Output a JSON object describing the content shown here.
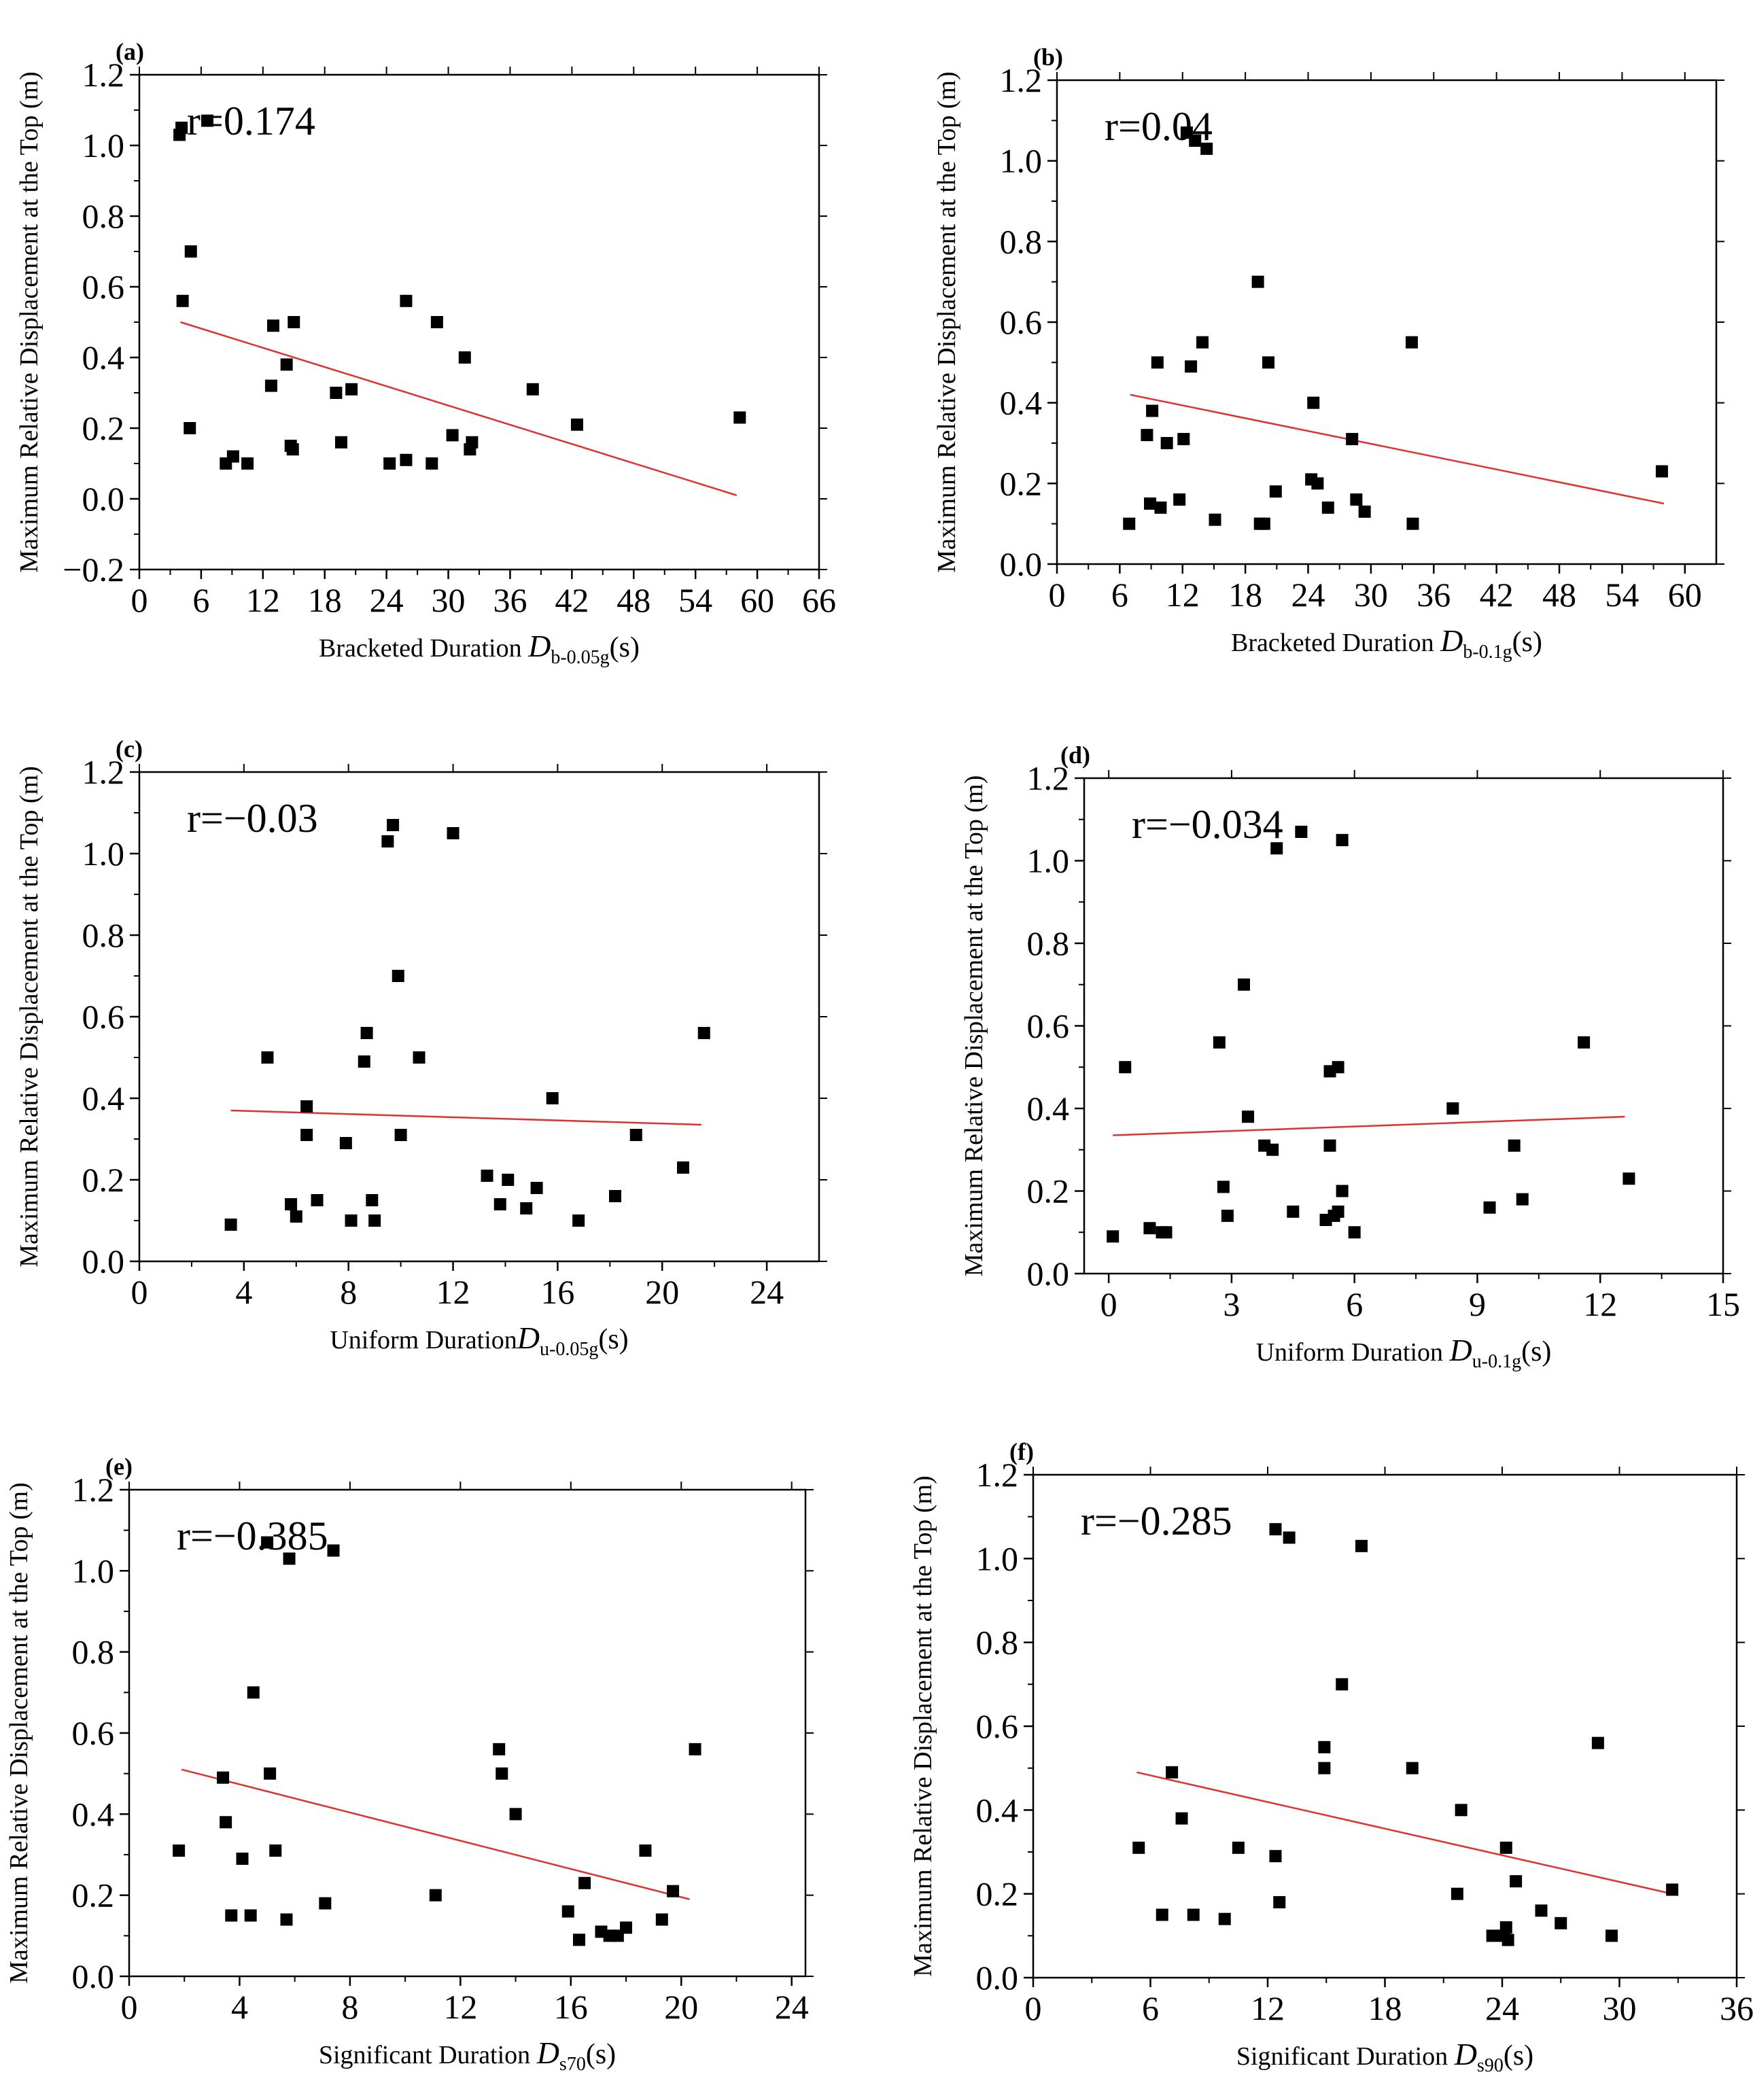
{
  "chart_data": [
    {
      "type": "scatter",
      "panel": "(a)",
      "annotation": "r=0.174",
      "ylabel": "Maximum Relative Displacement at the Top (m)",
      "xlabel": {
        "prefix": "Bracketed Duration ",
        "var": "D",
        "sub": "b-0.05g",
        "unit": "(s)"
      },
      "xlim": [
        0,
        66
      ],
      "ylim": [
        -0.2,
        1.2
      ],
      "xticks": [
        "0",
        "6",
        "12",
        "18",
        "24",
        "30",
        "36",
        "42",
        "48",
        "54",
        "60",
        "66"
      ],
      "yticks": [
        "−0.2",
        "0.0",
        "0.2",
        "0.4",
        "0.6",
        "0.8",
        "1.0",
        "1.2"
      ],
      "ytick_values": [
        -0.2,
        0.0,
        0.2,
        0.4,
        0.6,
        0.8,
        1.0,
        1.2
      ],
      "points": [
        [
          3.9,
          1.03
        ],
        [
          4.1,
          1.05
        ],
        [
          6.6,
          1.07
        ],
        [
          5.0,
          0.7
        ],
        [
          4.2,
          0.56
        ],
        [
          4.9,
          0.2
        ],
        [
          8.4,
          0.1
        ],
        [
          9.1,
          0.12
        ],
        [
          10.5,
          0.1
        ],
        [
          12.8,
          0.32
        ],
        [
          13.0,
          0.49
        ],
        [
          14.3,
          0.38
        ],
        [
          14.7,
          0.15
        ],
        [
          15.0,
          0.5
        ],
        [
          14.9,
          0.14
        ],
        [
          19.1,
          0.3
        ],
        [
          19.6,
          0.16
        ],
        [
          20.6,
          0.31
        ],
        [
          24.3,
          0.1
        ],
        [
          25.9,
          0.56
        ],
        [
          25.9,
          0.11
        ],
        [
          28.4,
          0.1
        ],
        [
          28.9,
          0.5
        ],
        [
          30.4,
          0.18
        ],
        [
          31.6,
          0.4
        ],
        [
          32.1,
          0.14
        ],
        [
          32.3,
          0.16
        ],
        [
          38.2,
          0.31
        ],
        [
          42.5,
          0.21
        ],
        [
          58.3,
          0.23
        ]
      ],
      "fit": {
        "x": [
          4.0,
          58.0
        ],
        "y": [
          0.5,
          0.01
        ]
      }
    },
    {
      "type": "scatter",
      "panel": "(b)",
      "annotation": "r=0.04",
      "ylabel": "Maximum Relative Displacement at the Top (m)",
      "xlabel": {
        "prefix": "Bracketed Duration ",
        "var": "D",
        "sub": "b-0.1g",
        "unit": "(s)"
      },
      "xlim": [
        0,
        63
      ],
      "ylim": [
        0.0,
        1.2
      ],
      "xticks": [
        "0",
        "6",
        "12",
        "18",
        "24",
        "30",
        "36",
        "42",
        "48",
        "54",
        "60"
      ],
      "yticks": [
        "0.0",
        "0.2",
        "0.4",
        "0.6",
        "0.8",
        "1.0",
        "1.2"
      ],
      "ytick_values": [
        0.0,
        0.2,
        0.4,
        0.6,
        0.8,
        1.0,
        1.2
      ],
      "points": [
        [
          12.4,
          1.07
        ],
        [
          13.2,
          1.05
        ],
        [
          14.3,
          1.03
        ],
        [
          19.2,
          0.7
        ],
        [
          13.9,
          0.55
        ],
        [
          9.6,
          0.5
        ],
        [
          12.8,
          0.49
        ],
        [
          20.2,
          0.5
        ],
        [
          9.1,
          0.38
        ],
        [
          8.6,
          0.32
        ],
        [
          12.1,
          0.31
        ],
        [
          10.5,
          0.3
        ],
        [
          24.5,
          0.4
        ],
        [
          33.9,
          0.55
        ],
        [
          28.2,
          0.31
        ],
        [
          8.9,
          0.15
        ],
        [
          9.9,
          0.14
        ],
        [
          11.7,
          0.16
        ],
        [
          6.9,
          0.1
        ],
        [
          15.1,
          0.11
        ],
        [
          19.4,
          0.1
        ],
        [
          19.8,
          0.1
        ],
        [
          20.9,
          0.18
        ],
        [
          24.3,
          0.21
        ],
        [
          24.9,
          0.2
        ],
        [
          25.9,
          0.14
        ],
        [
          28.6,
          0.16
        ],
        [
          29.4,
          0.13
        ],
        [
          34.0,
          0.1
        ],
        [
          57.8,
          0.23
        ]
      ],
      "fit": {
        "x": [
          7.0,
          58.0
        ],
        "y": [
          0.42,
          0.15
        ]
      }
    },
    {
      "type": "scatter",
      "panel": "(c)",
      "annotation": "r=−0.03",
      "ylabel": "Maximum Relative Displacement at the Top (m)",
      "xlabel": {
        "prefix": "Uniform Duration",
        "var": "D",
        "sub": "u-0.05g",
        "unit": "(s)"
      },
      "xlim": [
        0,
        26
      ],
      "ylim": [
        0.0,
        1.2
      ],
      "xticks": [
        "0",
        "4",
        "8",
        "12",
        "16",
        "20",
        "24"
      ],
      "yticks": [
        "0.0",
        "0.2",
        "0.4",
        "0.6",
        "0.8",
        "1.0",
        "1.2"
      ],
      "ytick_values": [
        0.0,
        0.2,
        0.4,
        0.6,
        0.8,
        1.0,
        1.2
      ],
      "points": [
        [
          9.5,
          1.03
        ],
        [
          9.7,
          1.07
        ],
        [
          12.0,
          1.05
        ],
        [
          9.9,
          0.7
        ],
        [
          4.9,
          0.5
        ],
        [
          8.7,
          0.56
        ],
        [
          8.6,
          0.49
        ],
        [
          10.7,
          0.5
        ],
        [
          6.4,
          0.38
        ],
        [
          6.4,
          0.31
        ],
        [
          10.0,
          0.31
        ],
        [
          7.9,
          0.29
        ],
        [
          15.8,
          0.4
        ],
        [
          3.5,
          0.09
        ],
        [
          5.8,
          0.14
        ],
        [
          6.0,
          0.11
        ],
        [
          6.8,
          0.15
        ],
        [
          8.1,
          0.1
        ],
        [
          8.9,
          0.15
        ],
        [
          9.0,
          0.1
        ],
        [
          13.3,
          0.21
        ],
        [
          13.8,
          0.14
        ],
        [
          14.1,
          0.2
        ],
        [
          14.8,
          0.13
        ],
        [
          15.2,
          0.18
        ],
        [
          16.8,
          0.1
        ],
        [
          18.2,
          0.16
        ],
        [
          19.0,
          0.31
        ],
        [
          20.8,
          0.23
        ],
        [
          21.6,
          0.56
        ]
      ],
      "fit": {
        "x": [
          3.5,
          21.5
        ],
        "y": [
          0.37,
          0.335
        ]
      }
    },
    {
      "type": "scatter",
      "panel": "(d)",
      "annotation": "r=−0.034",
      "ylabel": "Maximum Relative Displacement at the Top (m)",
      "xlabel": {
        "prefix": "Uniform Duration ",
        "var": "D",
        "sub": "u-0.1g",
        "unit": "(s)"
      },
      "xlim": [
        -0.6,
        15
      ],
      "ylim": [
        0.0,
        1.2
      ],
      "xticks": [
        "0",
        "3",
        "6",
        "9",
        "12",
        "15"
      ],
      "yticks": [
        "0.0",
        "0.2",
        "0.4",
        "0.6",
        "0.8",
        "1.0",
        "1.2"
      ],
      "ytick_values": [
        0.0,
        0.2,
        0.4,
        0.6,
        0.8,
        1.0,
        1.2
      ],
      "points": [
        [
          4.1,
          1.03
        ],
        [
          4.7,
          1.07
        ],
        [
          5.7,
          1.05
        ],
        [
          3.3,
          0.7
        ],
        [
          0.4,
          0.5
        ],
        [
          2.7,
          0.56
        ],
        [
          5.4,
          0.49
        ],
        [
          5.6,
          0.5
        ],
        [
          3.4,
          0.38
        ],
        [
          3.8,
          0.31
        ],
        [
          4.0,
          0.3
        ],
        [
          5.4,
          0.31
        ],
        [
          8.4,
          0.4
        ],
        [
          11.6,
          0.56
        ],
        [
          2.8,
          0.21
        ],
        [
          2.9,
          0.14
        ],
        [
          4.5,
          0.15
        ],
        [
          5.3,
          0.13
        ],
        [
          5.6,
          0.15
        ],
        [
          5.7,
          0.2
        ],
        [
          6.0,
          0.1
        ],
        [
          5.5,
          0.14
        ],
        [
          0.1,
          0.09
        ],
        [
          1.0,
          0.11
        ],
        [
          1.3,
          0.1
        ],
        [
          1.4,
          0.1
        ],
        [
          9.3,
          0.16
        ],
        [
          9.9,
          0.31
        ],
        [
          10.1,
          0.18
        ],
        [
          12.7,
          0.23
        ]
      ],
      "fit": {
        "x": [
          0.1,
          12.6
        ],
        "y": [
          0.335,
          0.38
        ]
      }
    },
    {
      "type": "scatter",
      "panel": "(e)",
      "annotation": "r=−0.385",
      "ylabel": "Maximum Relative Displacement at the Top (m)",
      "xlabel": {
        "prefix": "Significant Duration ",
        "var": "D",
        "sub": "s70",
        "unit": "(s)"
      },
      "xlim": [
        0,
        24.5
      ],
      "ylim": [
        0.0,
        1.2
      ],
      "xticks": [
        "0",
        "4",
        "8",
        "12",
        "16",
        "20",
        "24"
      ],
      "yticks": [
        "0.0",
        "0.2",
        "0.4",
        "0.6",
        "0.8",
        "1.0",
        "1.2"
      ],
      "ytick_values": [
        0.0,
        0.2,
        0.4,
        0.6,
        0.8,
        1.0,
        1.2
      ],
      "points": [
        [
          5.0,
          1.07
        ],
        [
          5.8,
          1.03
        ],
        [
          7.4,
          1.05
        ],
        [
          4.5,
          0.7
        ],
        [
          3.4,
          0.49
        ],
        [
          5.1,
          0.5
        ],
        [
          3.5,
          0.38
        ],
        [
          4.1,
          0.29
        ],
        [
          5.3,
          0.31
        ],
        [
          1.8,
          0.31
        ],
        [
          3.7,
          0.15
        ],
        [
          4.4,
          0.15
        ],
        [
          5.7,
          0.14
        ],
        [
          7.1,
          0.18
        ],
        [
          11.1,
          0.2
        ],
        [
          13.4,
          0.56
        ],
        [
          13.5,
          0.5
        ],
        [
          14.0,
          0.4
        ],
        [
          15.9,
          0.16
        ],
        [
          16.3,
          0.09
        ],
        [
          16.5,
          0.23
        ],
        [
          17.1,
          0.11
        ],
        [
          17.4,
          0.1
        ],
        [
          17.7,
          0.1
        ],
        [
          18.0,
          0.12
        ],
        [
          18.7,
          0.31
        ],
        [
          19.3,
          0.14
        ],
        [
          19.7,
          0.21
        ],
        [
          20.5,
          0.56
        ]
      ],
      "fit": {
        "x": [
          1.9,
          20.3
        ],
        "y": [
          0.51,
          0.19
        ]
      }
    },
    {
      "type": "scatter",
      "panel": "(f)",
      "annotation": "r=−0.285",
      "ylabel": "Maximum Relative Displacement at the Top (m)",
      "xlabel": {
        "prefix": "Significant Duration ",
        "var": "D",
        "sub": "s90",
        "unit": "(s)"
      },
      "xlim": [
        0,
        36
      ],
      "ylim": [
        0.0,
        1.2
      ],
      "xticks": [
        "0",
        "6",
        "12",
        "18",
        "24",
        "30",
        "36"
      ],
      "yticks": [
        "0.0",
        "0.2",
        "0.4",
        "0.6",
        "0.8",
        "1.0",
        "1.2"
      ],
      "ytick_values": [
        0.0,
        0.2,
        0.4,
        0.6,
        0.8,
        1.0,
        1.2
      ],
      "points": [
        [
          12.4,
          1.07
        ],
        [
          13.1,
          1.05
        ],
        [
          16.8,
          1.03
        ],
        [
          15.8,
          0.7
        ],
        [
          7.1,
          0.49
        ],
        [
          14.9,
          0.55
        ],
        [
          14.9,
          0.5
        ],
        [
          19.4,
          0.5
        ],
        [
          7.6,
          0.38
        ],
        [
          5.4,
          0.31
        ],
        [
          10.5,
          0.31
        ],
        [
          12.4,
          0.29
        ],
        [
          12.6,
          0.18
        ],
        [
          6.6,
          0.15
        ],
        [
          8.2,
          0.15
        ],
        [
          9.8,
          0.14
        ],
        [
          21.9,
          0.4
        ],
        [
          21.7,
          0.2
        ],
        [
          23.5,
          0.1
        ],
        [
          24.1,
          0.1
        ],
        [
          24.2,
          0.12
        ],
        [
          24.2,
          0.31
        ],
        [
          24.3,
          0.09
        ],
        [
          24.7,
          0.23
        ],
        [
          26.0,
          0.16
        ],
        [
          27.0,
          0.13
        ],
        [
          28.9,
          0.56
        ],
        [
          29.6,
          0.1
        ],
        [
          32.7,
          0.21
        ]
      ],
      "fit": {
        "x": [
          5.3,
          32.7
        ],
        "y": [
          0.49,
          0.2
        ]
      }
    }
  ],
  "colors": {
    "marker": "#000000",
    "fit_line": "#e03030",
    "axis": "#000000"
  }
}
